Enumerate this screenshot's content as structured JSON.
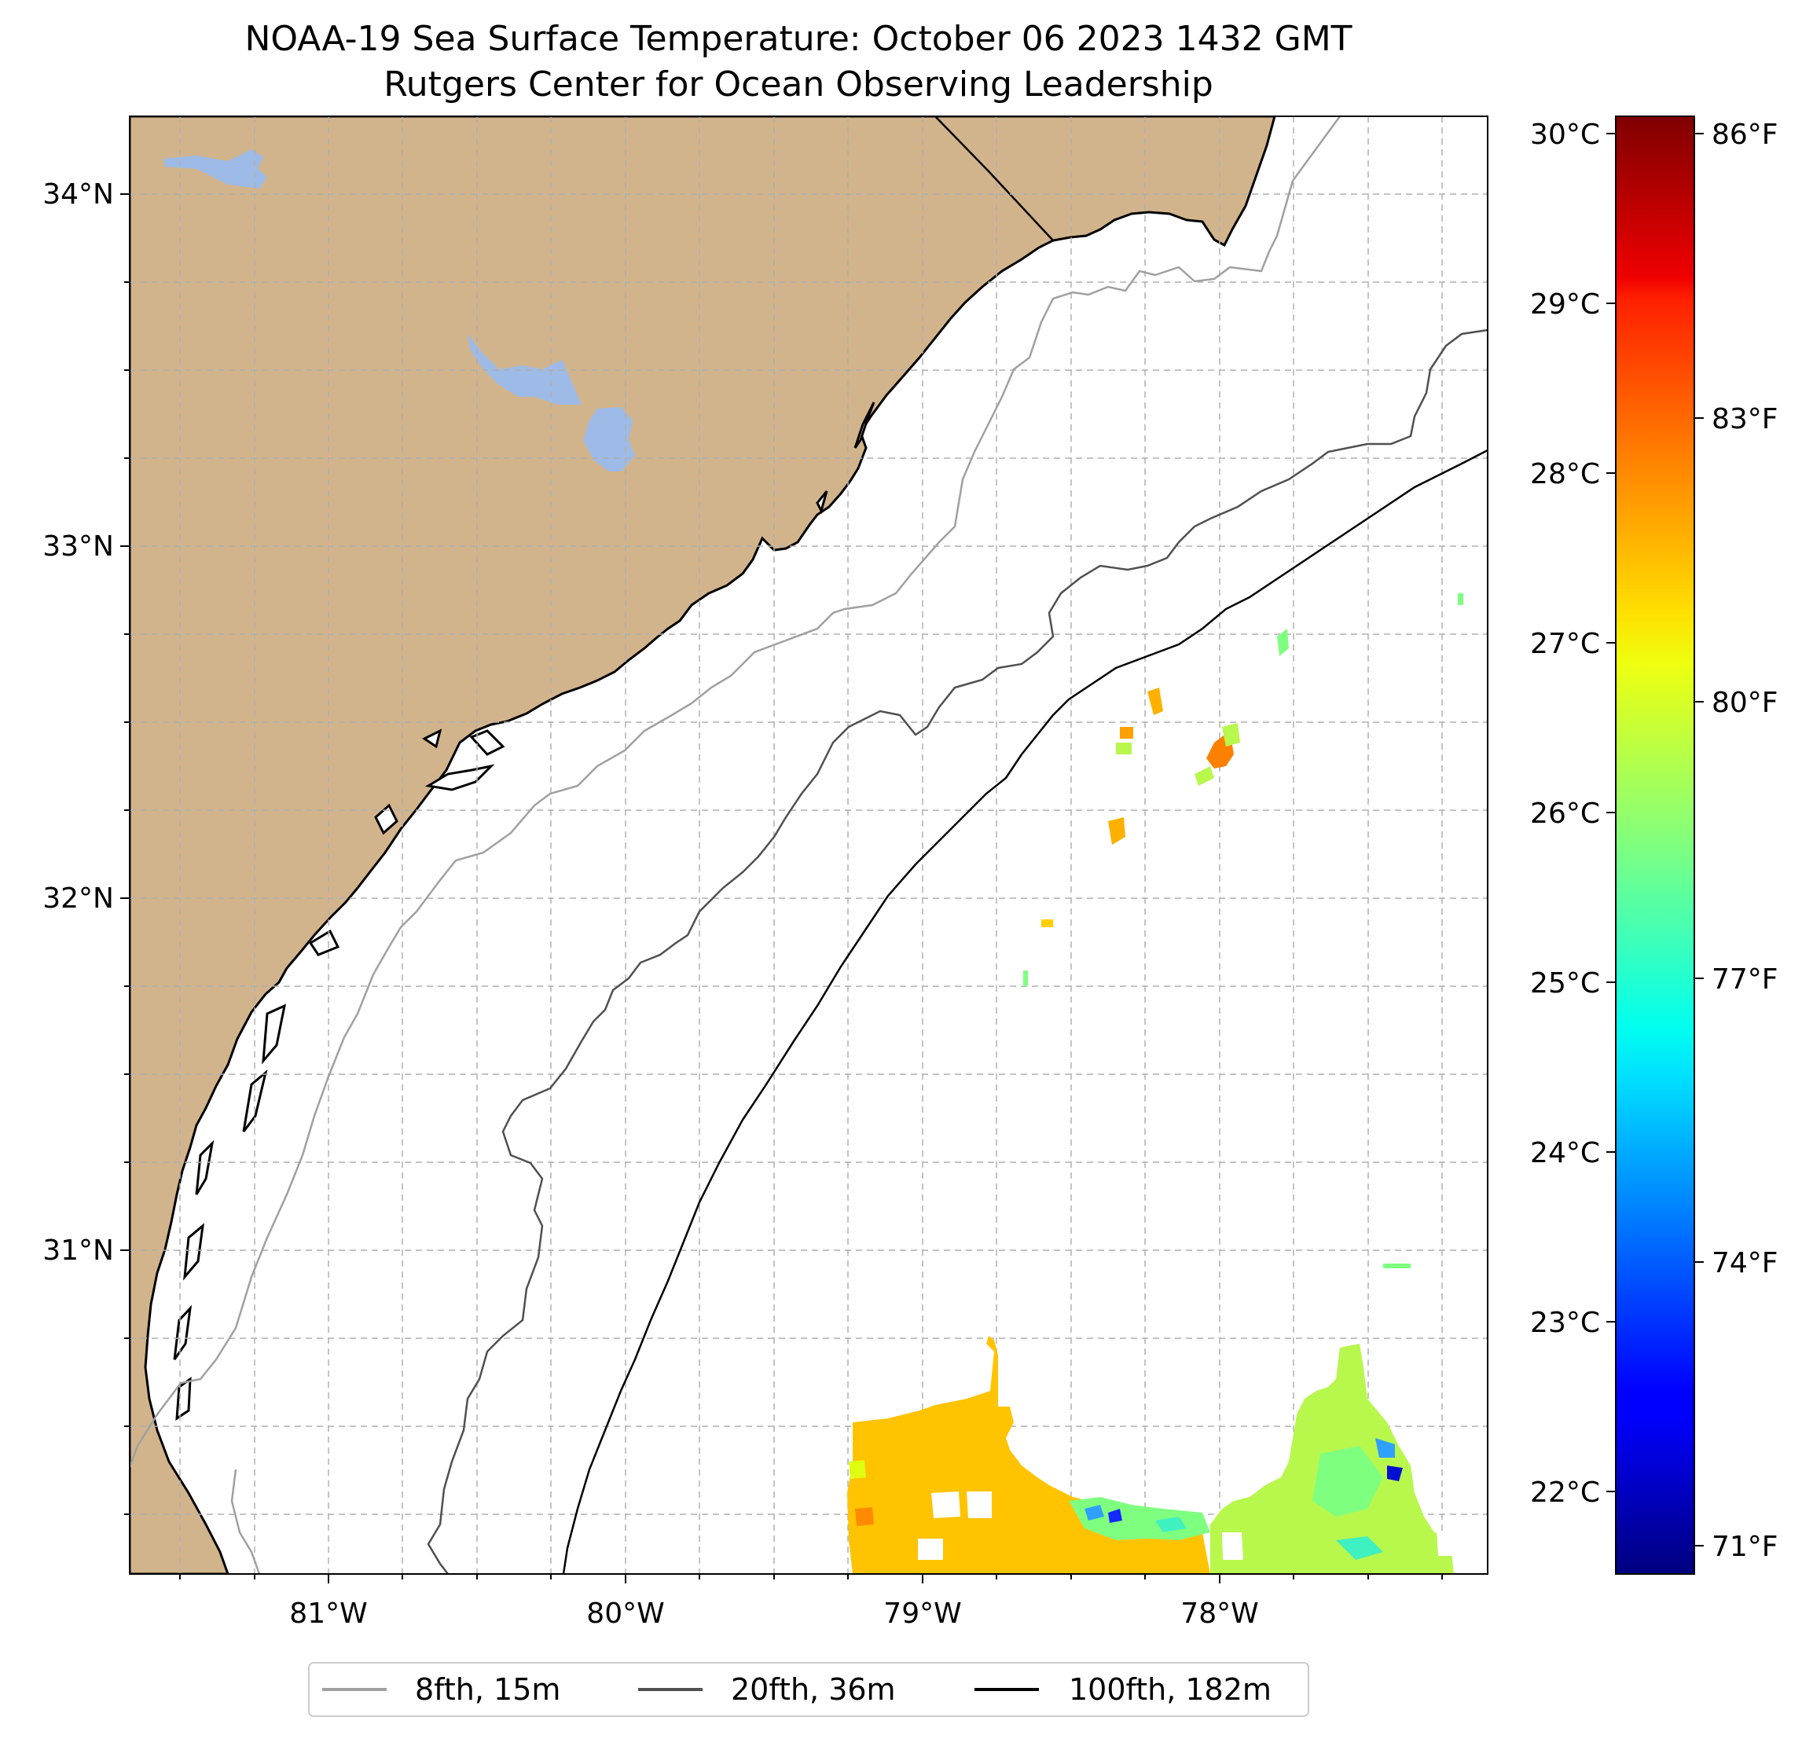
{
  "title": {
    "line1": "NOAA-19 Sea Surface Temperature: October 06 2023 1432 GMT",
    "line2": "Rutgers Center for Ocean Observing Leadership"
  },
  "map": {
    "lon_ticks": [
      "81°W",
      "80°W",
      "79°W",
      "78°W"
    ],
    "lat_ticks": [
      "34°N",
      "33°N",
      "32°N",
      "31°N"
    ],
    "colors": {
      "land": "#d2b48c",
      "lake": "#9dbbe6",
      "ocean": "#ffffff",
      "coast": "#000000",
      "grid": "#b0b0b0",
      "iso_8fth": "#a0a0a0",
      "iso_20fth": "#505050",
      "iso_100fth": "#000000"
    }
  },
  "colorbar": {
    "celsius_ticks": [
      "30°C",
      "29°C",
      "28°C",
      "27°C",
      "26°C",
      "25°C",
      "24°C",
      "23°C",
      "22°C"
    ],
    "fahrenheit_ticks": [
      "86°F",
      "83°F",
      "80°F",
      "77°F",
      "74°F",
      "71°F"
    ],
    "colormap": "jet",
    "range_c": [
      21.6,
      30.2
    ]
  },
  "legend": {
    "items": [
      {
        "label": "8fth, 15m",
        "color": "#a0a0a0"
      },
      {
        "label": "20fth, 36m",
        "color": "#505050"
      },
      {
        "label": "100fth, 182m",
        "color": "#000000"
      }
    ]
  }
}
